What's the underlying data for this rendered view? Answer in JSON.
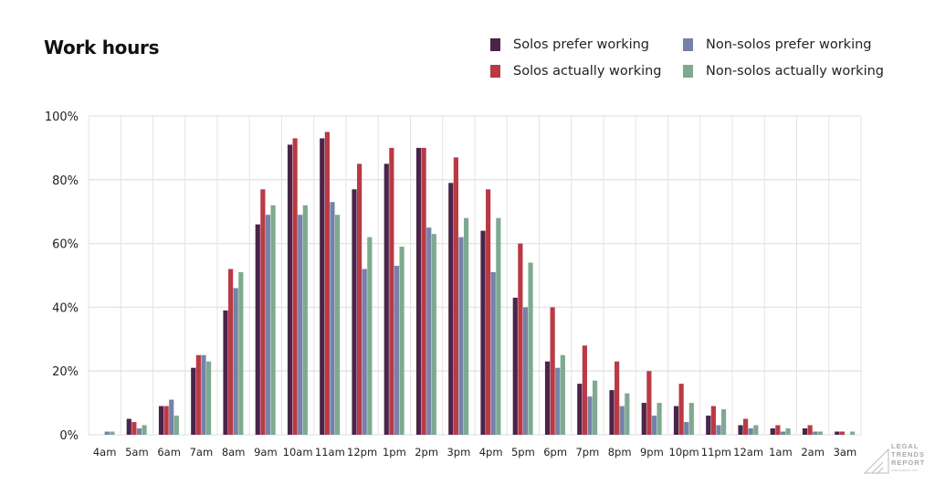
{
  "chart_data": {
    "type": "bar",
    "title": "Work hours",
    "xlabel": "",
    "ylabel": "",
    "ylim": [
      0,
      100
    ],
    "yticks": [
      "0%",
      "20%",
      "40%",
      "60%",
      "80%",
      "100%"
    ],
    "grid": true,
    "legend_placement": "top-right",
    "categories": [
      "4am",
      "5am",
      "6am",
      "7am",
      "8am",
      "9am",
      "10am",
      "11am",
      "12pm",
      "1pm",
      "2pm",
      "3pm",
      "4pm",
      "5pm",
      "6pm",
      "7pm",
      "8pm",
      "9pm",
      "10pm",
      "11pm",
      "12am",
      "1am",
      "2am",
      "3am"
    ],
    "series": [
      {
        "name": "Solos prefer working",
        "color": "#4a2449",
        "values": [
          0,
          5,
          9,
          21,
          39,
          66,
          91,
          93,
          77,
          85,
          90,
          79,
          64,
          43,
          23,
          16,
          14,
          10,
          9,
          6,
          3,
          2,
          2,
          1
        ]
      },
      {
        "name": "Solos actually working",
        "color": "#b93a45",
        "values": [
          0,
          4,
          9,
          25,
          52,
          77,
          93,
          95,
          85,
          90,
          90,
          87,
          77,
          60,
          40,
          28,
          23,
          20,
          16,
          9,
          5,
          3,
          3,
          1
        ]
      },
      {
        "name": "Non-solos prefer working",
        "color": "#7682a8",
        "values": [
          1,
          2,
          11,
          25,
          46,
          69,
          69,
          73,
          52,
          53,
          65,
          62,
          51,
          40,
          21,
          12,
          9,
          6,
          4,
          3,
          2,
          1,
          1,
          0
        ]
      },
      {
        "name": "Non-solos actually working",
        "color": "#7eaa90",
        "values": [
          1,
          3,
          6,
          23,
          51,
          72,
          72,
          69,
          62,
          59,
          63,
          68,
          68,
          54,
          25,
          17,
          13,
          10,
          10,
          8,
          3,
          2,
          1,
          1
        ]
      }
    ]
  },
  "logo": {
    "line1": "LEGAL",
    "line2": "TRENDS",
    "line3": "REPORT",
    "tagline": "PUBLISHED BY CLIO"
  }
}
